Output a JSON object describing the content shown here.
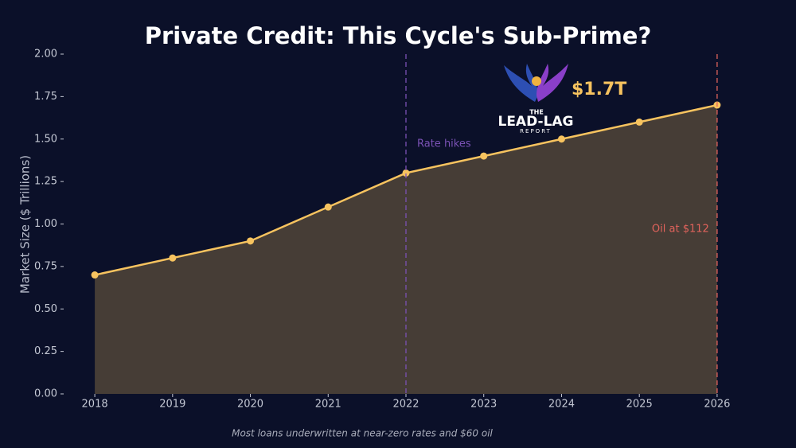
{
  "chart_data": {
    "type": "area-line",
    "title": "Private Credit: This Cycle's Sub-Prime?",
    "y_label": "Market Size ($ Trillions)",
    "footnote": "Most loans underwritten at near-zero rates and $60 oil",
    "x": [
      2018,
      2019,
      2020,
      2021,
      2022,
      2023,
      2024,
      2025,
      2026
    ],
    "values": [
      0.7,
      0.8,
      0.9,
      1.1,
      1.3,
      1.4,
      1.5,
      1.6,
      1.7
    ],
    "color": "#f7c35f",
    "xlim": [
      2017.6,
      2026.4
    ],
    "xticks": [
      2018,
      2019,
      2020,
      2021,
      2022,
      2023,
      2024,
      2025,
      2026
    ],
    "ylim": [
      0,
      2
    ],
    "yticks": [
      {
        "value": 0,
        "label": "0.00"
      },
      {
        "value": 0.25,
        "label": "0.25"
      },
      {
        "value": 0.5,
        "label": "0.50"
      },
      {
        "value": 0.75,
        "label": "0.75"
      },
      {
        "value": 1,
        "label": "1.00"
      },
      {
        "value": 1.25,
        "label": "1.25"
      },
      {
        "value": 1.5,
        "label": "1.50"
      },
      {
        "value": 1.75,
        "label": "1.75"
      },
      {
        "value": 2,
        "label": "2.00"
      }
    ],
    "vlines": [
      {
        "x": 2022,
        "label": "Rate hikes",
        "color": "#7b52b5"
      },
      {
        "x": 2026,
        "label": "Oil at $112",
        "color": "#e2635c"
      }
    ],
    "callout": "$1.7T"
  },
  "logo": {
    "top": "THE",
    "main": "LEAD-LAG",
    "bottom": "REPORT"
  }
}
